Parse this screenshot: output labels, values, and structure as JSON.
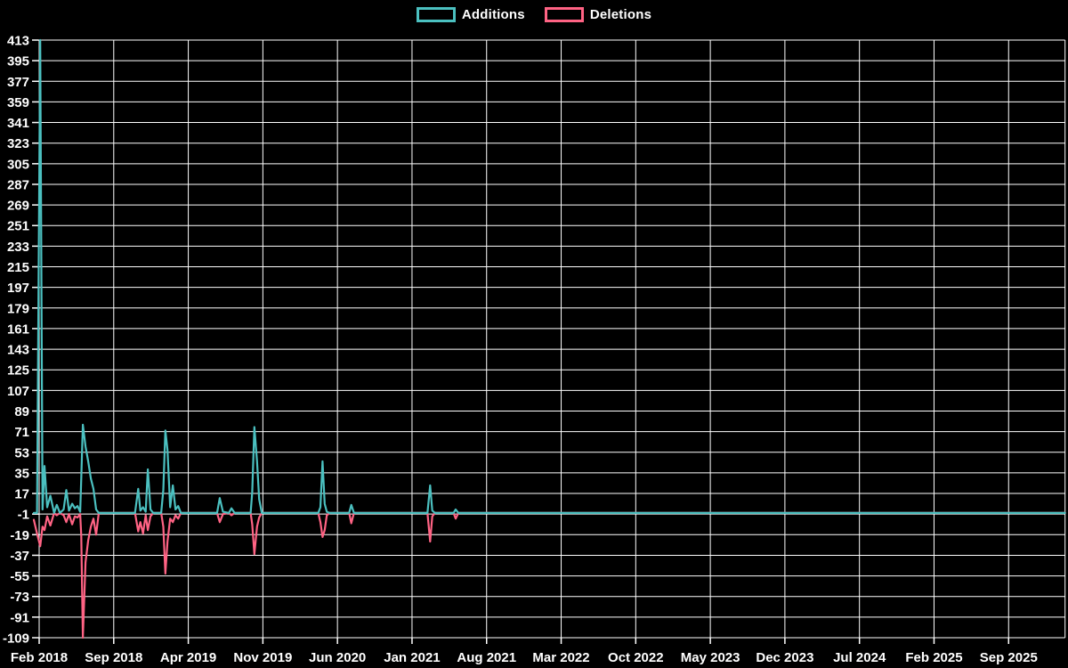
{
  "legend": {
    "items": [
      {
        "label": "Additions",
        "color": "#4bc0c0"
      },
      {
        "label": "Deletions",
        "color": "#ff6384"
      }
    ]
  },
  "chart_data": {
    "type": "line",
    "title": "",
    "xlabel": "",
    "ylabel": "",
    "background_color": "#000000",
    "grid_color": "#ffffff",
    "text_color": "#ffffff",
    "grid": true,
    "legend_position": "top-center",
    "ylim": [
      -109,
      413
    ],
    "y_tick_step": 18,
    "y_ticks": [
      413,
      395,
      377,
      359,
      341,
      323,
      305,
      287,
      269,
      251,
      233,
      215,
      197,
      179,
      161,
      143,
      125,
      107,
      89,
      71,
      53,
      35,
      17,
      -1,
      -19,
      -37,
      -55,
      -73,
      -91,
      -109
    ],
    "x_tick_labels": [
      "Feb 2018",
      "Sep 2018",
      "Apr 2019",
      "Nov 2019",
      "Jun 2020",
      "Jan 2021",
      "Aug 2021",
      "Mar 2022",
      "Oct 2022",
      "May 2023",
      "Dec 2023",
      "Jul 2024",
      "Feb 2025",
      "Sep 2025"
    ],
    "x_tick_interval_months": 7,
    "series": [
      {
        "name": "Additions",
        "color": "#4bc0c0",
        "column": "additions"
      },
      {
        "name": "Deletions",
        "color": "#ff6384",
        "column": "deletions"
      }
    ],
    "points_note": "rows are [months_since_Feb_2018, additions, deletions]; baseline 0 between spike clusters; line continues flat to right edge",
    "columns": [
      "month_offset",
      "additions",
      "deletions"
    ],
    "rows": [
      [
        -0.5,
        0,
        -6
      ],
      [
        -0.2,
        0,
        -18
      ],
      [
        0.1,
        413,
        -29
      ],
      [
        0.32,
        3,
        -12
      ],
      [
        0.5,
        41,
        -15
      ],
      [
        0.75,
        5,
        -3
      ],
      [
        1.05,
        15,
        -11
      ],
      [
        1.4,
        0,
        0
      ],
      [
        1.65,
        7,
        -2
      ],
      [
        1.95,
        0,
        0
      ],
      [
        2.3,
        3,
        -2
      ],
      [
        2.55,
        20,
        -8
      ],
      [
        2.8,
        2,
        -1
      ],
      [
        3.1,
        8,
        -10
      ],
      [
        3.35,
        4,
        -3
      ],
      [
        3.6,
        6,
        -4
      ],
      [
        3.85,
        1,
        -1
      ],
      [
        3.95,
        30,
        -20
      ],
      [
        4.1,
        77,
        -109
      ],
      [
        4.35,
        58,
        -43
      ],
      [
        4.6,
        45,
        -24
      ],
      [
        4.85,
        30,
        -12
      ],
      [
        5.1,
        21,
        -5
      ],
      [
        5.35,
        3,
        -19
      ],
      [
        5.6,
        0,
        0
      ],
      [
        9.0,
        0,
        0
      ],
      [
        9.3,
        21,
        -16
      ],
      [
        9.5,
        2,
        -8
      ],
      [
        9.75,
        5,
        -18
      ],
      [
        10.0,
        1,
        -2
      ],
      [
        10.2,
        38,
        -15
      ],
      [
        10.45,
        3,
        -3
      ],
      [
        10.7,
        0,
        0
      ],
      [
        11.45,
        0,
        0
      ],
      [
        11.65,
        20,
        -12
      ],
      [
        11.85,
        72,
        -53
      ],
      [
        12.05,
        55,
        -25
      ],
      [
        12.3,
        5,
        -5
      ],
      [
        12.55,
        24,
        -8
      ],
      [
        12.8,
        3,
        -2
      ],
      [
        13.05,
        6,
        -5
      ],
      [
        13.3,
        0,
        0
      ],
      [
        16.7,
        0,
        0
      ],
      [
        16.95,
        13,
        -8
      ],
      [
        17.25,
        1,
        -1
      ],
      [
        17.8,
        0,
        0
      ],
      [
        18.05,
        4,
        -2
      ],
      [
        18.35,
        0,
        0
      ],
      [
        19.85,
        0,
        0
      ],
      [
        20.0,
        18,
        -10
      ],
      [
        20.2,
        75,
        -36
      ],
      [
        20.45,
        45,
        -12
      ],
      [
        20.65,
        12,
        -4
      ],
      [
        20.9,
        0,
        0
      ],
      [
        26.2,
        0,
        0
      ],
      [
        26.4,
        5,
        -8
      ],
      [
        26.6,
        45,
        -21
      ],
      [
        26.8,
        8,
        -15
      ],
      [
        27.0,
        1,
        -2
      ],
      [
        27.25,
        0,
        0
      ],
      [
        29.1,
        0,
        0
      ],
      [
        29.3,
        7,
        -9
      ],
      [
        29.55,
        0,
        0
      ],
      [
        36.45,
        0,
        0
      ],
      [
        36.7,
        24,
        -25
      ],
      [
        36.9,
        2,
        -3
      ],
      [
        37.15,
        0,
        0
      ],
      [
        38.9,
        0,
        0
      ],
      [
        39.1,
        3,
        -5
      ],
      [
        39.35,
        0,
        0
      ],
      [
        96.3,
        0,
        0
      ]
    ]
  }
}
